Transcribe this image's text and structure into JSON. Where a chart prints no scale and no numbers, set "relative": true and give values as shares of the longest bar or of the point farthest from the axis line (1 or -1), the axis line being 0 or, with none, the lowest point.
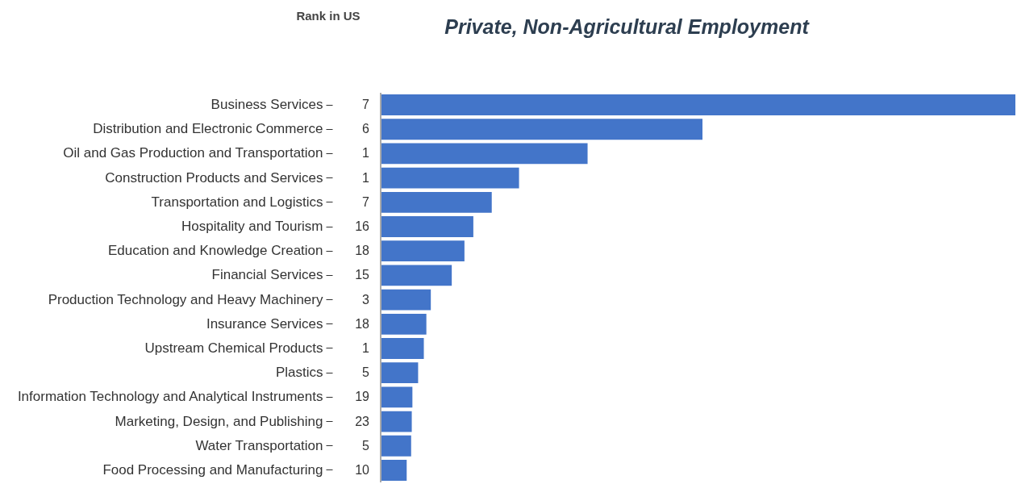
{
  "chart_data": {
    "type": "bar",
    "orientation": "horizontal",
    "relative": true,
    "title": "Private, Non-Agricultural Employment",
    "categories": [
      "Business Services",
      "Distribution and Electronic Commerce",
      "Oil and Gas Production and Transportation",
      "Construction Products and Services",
      "Transportation and Logistics",
      "Hospitality and Tourism",
      "Education and Knowledge Creation",
      "Financial Services",
      "Production Technology and Heavy Machinery",
      "Insurance Services",
      "Upstream Chemical Products",
      "Plastics",
      "Information Technology and Analytical Instruments",
      "Marketing, Design, and Publishing",
      "Water Transportation",
      "Food Processing and Manufacturing"
    ],
    "series": [
      {
        "color": "#4375c9",
        "values": [
          1,
          0.507,
          0.326,
          0.218,
          0.175,
          0.146,
          0.132,
          0.112,
          0.079,
          0.072,
          0.068,
          0.059,
          0.05,
          0.049,
          0.048,
          0.041
        ]
      }
    ],
    "annotations": [
      "Rank in US",
      "7",
      "6",
      "1",
      "1",
      "7",
      "16",
      "18",
      "15",
      "3",
      "18",
      "1",
      "5",
      "19",
      "23",
      "5",
      "10"
    ]
  }
}
